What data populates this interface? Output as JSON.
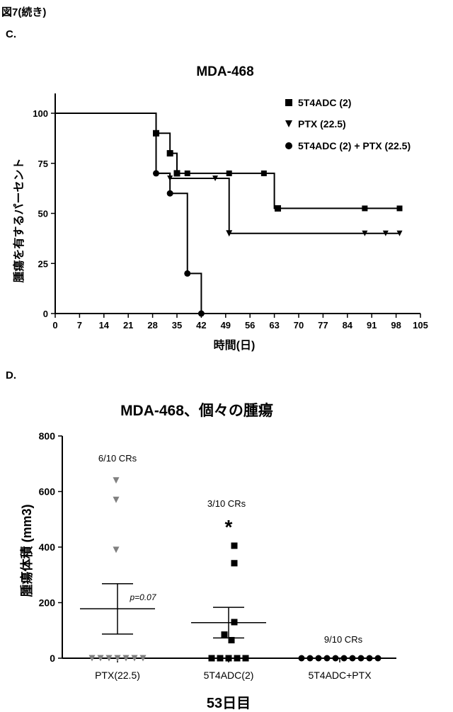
{
  "page": {
    "figure_label": "図7(続き)",
    "panel_c_label": "C.",
    "panel_d_label": "D."
  },
  "chart_data": [
    {
      "type": "line",
      "subtype": "survival-step",
      "title": "MDA-468",
      "xlabel": "時間(日)",
      "ylabel": "腫瘍を有するパーセント",
      "xlim": [
        0,
        105
      ],
      "ylim": [
        0,
        100
      ],
      "xticks": [
        0,
        7,
        14,
        21,
        28,
        35,
        42,
        49,
        56,
        63,
        70,
        77,
        84,
        91,
        98,
        105
      ],
      "yticks": [
        0,
        25,
        50,
        75,
        100
      ],
      "grid": false,
      "legend_position": "top-right",
      "series": [
        {
          "name": "5T4ADC (2)",
          "marker": "square",
          "steps": [
            [
              0,
              100
            ],
            [
              29,
              90
            ],
            [
              33,
              80
            ],
            [
              35,
              70
            ],
            [
              63,
              52.5
            ],
            [
              99,
              52.5
            ]
          ],
          "censored": [
            [
              38,
              70
            ],
            [
              50,
              70
            ],
            [
              60,
              70
            ],
            [
              89,
              52.5
            ],
            [
              99,
              52.5
            ]
          ],
          "event_markers": [
            [
              29,
              90
            ],
            [
              33,
              80
            ],
            [
              35,
              70
            ],
            [
              64,
              52.5
            ]
          ]
        },
        {
          "name": "PTX (22.5)",
          "marker": "triangle-down",
          "steps": [
            [
              0,
              100
            ],
            [
              29,
              70
            ],
            [
              33,
              67.5
            ],
            [
              50,
              40
            ],
            [
              99,
              40
            ]
          ],
          "censored": [
            [
              33,
              67.5
            ],
            [
              46,
              67.5
            ],
            [
              89,
              40
            ],
            [
              95,
              40
            ],
            [
              99,
              40
            ]
          ],
          "event_markers": [
            [
              50,
              40
            ]
          ]
        },
        {
          "name": "5T4ADC (2) + PTX (22.5)",
          "marker": "circle",
          "steps": [
            [
              0,
              100
            ],
            [
              29,
              70
            ],
            [
              33,
              60
            ],
            [
              38,
              20
            ],
            [
              42,
              0
            ]
          ],
          "censored": [],
          "event_markers": [
            [
              29,
              70
            ],
            [
              33,
              60
            ],
            [
              38,
              20
            ],
            [
              42,
              0
            ]
          ]
        }
      ]
    },
    {
      "type": "scatter",
      "subtype": "dot-plot",
      "title": "MDA-468、個々の腫瘍",
      "xlabel": "53日目",
      "ylabel": "腫瘍体積 (mm3)",
      "ylim": [
        0,
        800
      ],
      "yticks": [
        0,
        200,
        400,
        600,
        800
      ],
      "categories": [
        "PTX(22.5)",
        "5T4ADC(2)",
        "5T4ADC+PTX"
      ],
      "series": [
        {
          "name": "PTX(22.5)",
          "marker": "triangle-down",
          "color": "#808080",
          "values": [
            640,
            570,
            390,
            0,
            0,
            0,
            0,
            0,
            0,
            0
          ],
          "mean": 178,
          "sem_low": 87,
          "sem_high": 268,
          "annotation": "6/10 CRs",
          "p_value": "p=0.07"
        },
        {
          "name": "5T4ADC(2)",
          "marker": "square",
          "color": "#000000",
          "values": [
            405,
            342,
            130,
            85,
            65,
            0,
            0,
            0,
            0,
            0
          ],
          "mean": 128,
          "sem_low": 73,
          "sem_high": 183,
          "annotation": "3/10 CRs",
          "significance": "*"
        },
        {
          "name": "5T4ADC+PTX",
          "marker": "circle",
          "color": "#000000",
          "values": [
            0,
            0,
            0,
            0,
            0,
            0,
            0,
            0,
            0,
            0
          ],
          "annotation": "9/10 CRs"
        }
      ]
    }
  ]
}
